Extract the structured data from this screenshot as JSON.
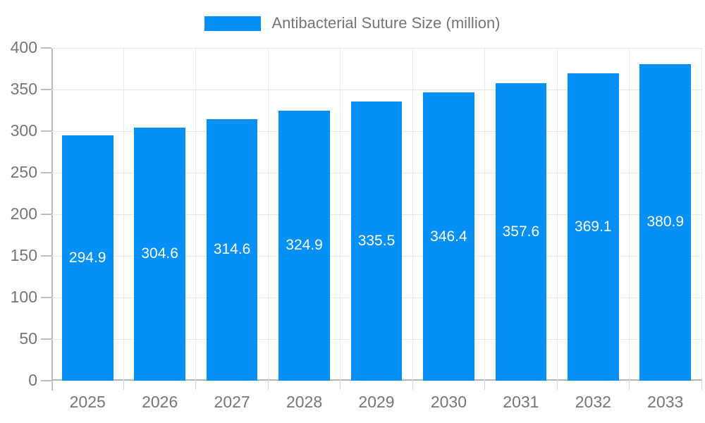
{
  "chart_data": {
    "type": "bar",
    "series_name": "Antibacterial Suture Size (million)",
    "categories": [
      "2025",
      "2026",
      "2027",
      "2028",
      "2029",
      "2030",
      "2031",
      "2032",
      "2033"
    ],
    "values": [
      294.9,
      304.6,
      314.6,
      324.9,
      335.5,
      346.4,
      357.6,
      369.1,
      380.9
    ],
    "value_labels": [
      "294.9",
      "304.6",
      "314.6",
      "324.9",
      "335.5",
      "346.4",
      "357.6",
      "369.1",
      "380.9"
    ],
    "xlabel": "",
    "ylabel": "",
    "ylim": [
      0,
      400
    ],
    "ytick_step": 50,
    "ytick_labels": [
      "0",
      "50",
      "100",
      "150",
      "200",
      "250",
      "300",
      "350",
      "400"
    ],
    "grid": true,
    "legend_position": "top-center",
    "colors": {
      "bar": "#0590f8",
      "value_label": "#ffffff",
      "axis_text": "#757575",
      "axis_line": "#b3b3b3",
      "gridline": "#e6e6e6",
      "background": "#ffffff"
    }
  }
}
